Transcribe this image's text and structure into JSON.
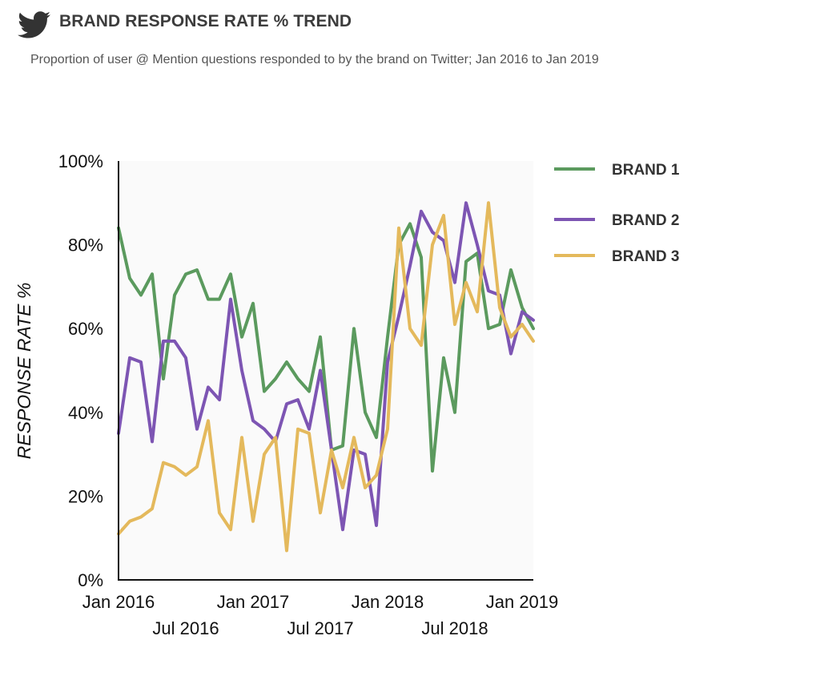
{
  "header": {
    "logo_icon": "twitter-bird-icon",
    "logo_color": "#333333",
    "title": "BRAND RESPONSE RATE % TREND",
    "subtitle": "Proportion of user @ Mention questions responded to by the brand on Twitter; Jan 2016 to Jan 2019"
  },
  "chart_data": {
    "type": "line",
    "ylabel": "RESPONSE RATE %",
    "xlabel": "",
    "ylim": [
      0,
      100
    ],
    "y_ticks": [
      "0%",
      "20%",
      "40%",
      "60%",
      "80%",
      "100%"
    ],
    "x_ticks_row1": [
      "Jan 2016",
      "Jan 2017",
      "Jan 2018",
      "Jan 2019"
    ],
    "x_ticks_row2": [
      "Jul 2016",
      "Jul 2017",
      "Jul 2018"
    ],
    "x": [
      "2016-01",
      "2016-02",
      "2016-03",
      "2016-04",
      "2016-05",
      "2016-06",
      "2016-07",
      "2016-08",
      "2016-09",
      "2016-10",
      "2016-11",
      "2016-12",
      "2017-01",
      "2017-02",
      "2017-03",
      "2017-04",
      "2017-05",
      "2017-06",
      "2017-07",
      "2017-08",
      "2017-09",
      "2017-10",
      "2017-11",
      "2017-12",
      "2018-01",
      "2018-02",
      "2018-03",
      "2018-04",
      "2018-05",
      "2018-06",
      "2018-07",
      "2018-08",
      "2018-09",
      "2018-10",
      "2018-11",
      "2018-12",
      "2019-01",
      "2019-02"
    ],
    "series": [
      {
        "name": "BRAND 1",
        "color": "#5b9a5e",
        "values": [
          84,
          72,
          68,
          73,
          48,
          68,
          73,
          74,
          67,
          67,
          73,
          58,
          66,
          45,
          48,
          52,
          48,
          45,
          58,
          31,
          32,
          60,
          40,
          34,
          58,
          80,
          85,
          77,
          26,
          53,
          40,
          76,
          78,
          60,
          61,
          74,
          65,
          60
        ]
      },
      {
        "name": "BRAND 2",
        "color": "#7d55b3",
        "values": [
          35,
          53,
          52,
          33,
          57,
          57,
          53,
          36,
          46,
          43,
          67,
          50,
          38,
          36,
          33,
          42,
          43,
          36,
          50,
          31,
          12,
          31,
          30,
          13,
          52,
          63,
          75,
          88,
          83,
          81,
          71,
          90,
          80,
          69,
          68,
          54,
          64,
          62
        ]
      },
      {
        "name": "BRAND 3",
        "color": "#e4b95c",
        "values": [
          11,
          14,
          15,
          17,
          28,
          27,
          25,
          27,
          38,
          16,
          12,
          34,
          14,
          30,
          34,
          7,
          36,
          35,
          16,
          31,
          22,
          34,
          22,
          25,
          36,
          84,
          60,
          56,
          80,
          87,
          61,
          71,
          64,
          90,
          65,
          58,
          61,
          57
        ]
      }
    ],
    "legend_position": "right",
    "grid": false,
    "plot_background": "#fafafa"
  }
}
